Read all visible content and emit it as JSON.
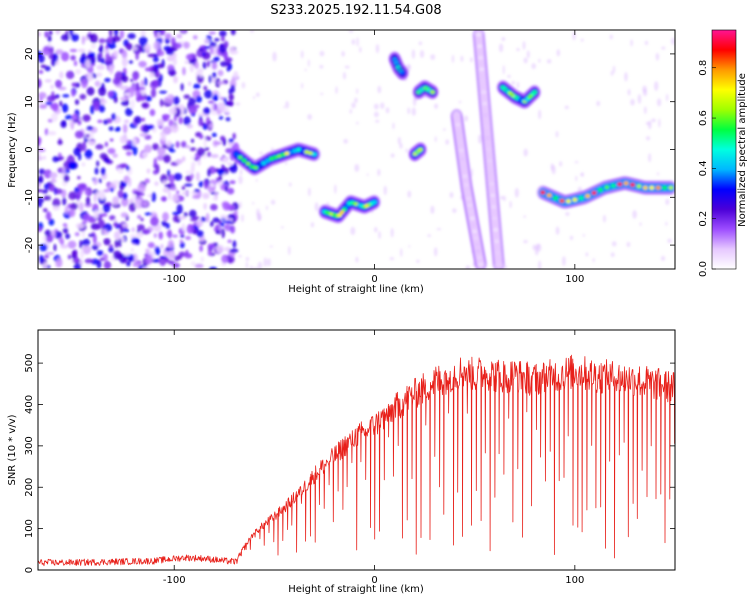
{
  "figure": {
    "title": "S233.2025.192.11.54.G08"
  },
  "chart_data": [
    {
      "type": "heatmap",
      "xlabel": "Height of straight line (km)",
      "ylabel": "Frequency (Hz)",
      "xlim": [
        -168,
        150
      ],
      "ylim": [
        -25,
        25
      ],
      "xticks": [
        -100,
        0,
        100
      ],
      "yticks": [
        -20,
        -10,
        0,
        10,
        20
      ],
      "colorbar": {
        "label": "Normalized spectral amplitude",
        "range": [
          0,
          0.95
        ],
        "ticks": [
          0.0,
          0.2,
          0.4,
          0.6,
          0.8
        ],
        "colormap": [
          "#ffffff",
          "#e6c8ff",
          "#9d4dff",
          "#4b00d8",
          "#0000ff",
          "#00b8ff",
          "#00ffe0",
          "#00ff40",
          "#a0ff00",
          "#ffff00",
          "#ff9900",
          "#ff0000",
          "#ff1493"
        ]
      },
      "noise_region": {
        "x": [
          -168,
          -69
        ],
        "y": [
          -25,
          25
        ],
        "level": 0.12
      },
      "features": [
        {
          "kind": "line",
          "x": [
            -69,
            -60,
            -52,
            -45,
            -38,
            -30
          ],
          "y": [
            -1,
            -4,
            -2,
            -1,
            0,
            -1
          ],
          "level": 0.42
        },
        {
          "kind": "line",
          "x": [
            -25,
            -18,
            -12,
            -5,
            0
          ],
          "y": [
            -13,
            -14,
            -11,
            -12,
            -11
          ],
          "level": 0.45
        },
        {
          "kind": "line",
          "x": [
            10,
            12,
            14
          ],
          "y": [
            19,
            17,
            16
          ],
          "level": 0.35
        },
        {
          "kind": "line",
          "x": [
            22,
            25,
            29
          ],
          "y": [
            12,
            13,
            12
          ],
          "level": 0.38
        },
        {
          "kind": "line",
          "x": [
            20,
            23
          ],
          "y": [
            -1,
            0
          ],
          "level": 0.45
        },
        {
          "kind": "line",
          "x": [
            41,
            46,
            53
          ],
          "y": [
            7,
            -8,
            -24
          ],
          "level": 0.05
        },
        {
          "kind": "line",
          "x": [
            52,
            57,
            62
          ],
          "y": [
            24,
            0,
            -24
          ],
          "level": 0.05
        },
        {
          "kind": "line",
          "x": [
            64,
            70,
            75,
            80
          ],
          "y": [
            13,
            11,
            10,
            12
          ],
          "level": 0.4
        },
        {
          "kind": "line",
          "x": [
            84,
            95,
            105,
            115,
            125,
            135,
            148
          ],
          "y": [
            -9,
            -11,
            -10,
            -8,
            -7,
            -8,
            -8
          ],
          "level": 0.55
        }
      ]
    },
    {
      "type": "line",
      "xlabel": "Height of straight line (km)",
      "ylabel": "SNR (10 * v/v)",
      "xlim": [
        -168,
        150
      ],
      "ylim": [
        0,
        580
      ],
      "xticks": [
        -100,
        0,
        100
      ],
      "yticks": [
        0,
        100,
        200,
        300,
        400,
        500
      ],
      "series": [
        {
          "color": "#e8201a",
          "x": [
            -168,
            -150,
            -130,
            -110,
            -95,
            -85,
            -75,
            -69,
            -65,
            -60,
            -55,
            -50,
            -45,
            -40,
            -35,
            -30,
            -25,
            -20,
            -15,
            -10,
            -5,
            0,
            5,
            10,
            15,
            20,
            25,
            30,
            35,
            40,
            45,
            50,
            55,
            60,
            70,
            80,
            90,
            100,
            110,
            120,
            130,
            140,
            150
          ],
          "y": [
            18,
            18,
            20,
            22,
            30,
            28,
            22,
            20,
            55,
            90,
            110,
            130,
            150,
            175,
            200,
            230,
            255,
            275,
            300,
            320,
            335,
            350,
            370,
            390,
            410,
            425,
            440,
            455,
            465,
            475,
            480,
            470,
            480,
            470,
            470,
            460,
            470,
            480,
            470,
            465,
            460,
            450,
            440
          ]
        }
      ],
      "dropouts": {
        "x_start": -69,
        "x_end": 150,
        "spacing": 2.3,
        "min_value": 25
      }
    }
  ]
}
